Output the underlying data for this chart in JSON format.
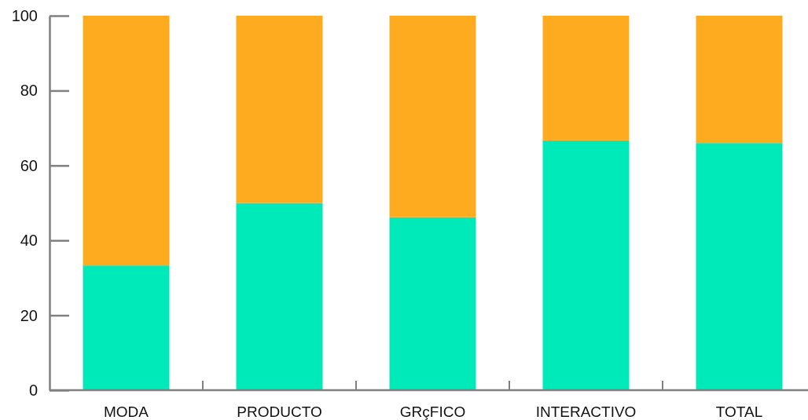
{
  "chart_data": {
    "type": "bar",
    "stacked": true,
    "categories": [
      "MODA",
      "PRODUCTO",
      "GRçFICO",
      "INTERACTIVO",
      "TOTAL"
    ],
    "series": [
      {
        "color": "#00e9b9",
        "values": [
          33.3,
          50,
          46.2,
          66.7,
          66.0
        ]
      },
      {
        "color": "#ffab1f",
        "values": [
          66.7,
          50,
          53.8,
          33.3,
          34.0
        ]
      }
    ],
    "ylim": [
      0,
      100
    ],
    "yticks": [
      0,
      20,
      40,
      60,
      80,
      100
    ]
  }
}
